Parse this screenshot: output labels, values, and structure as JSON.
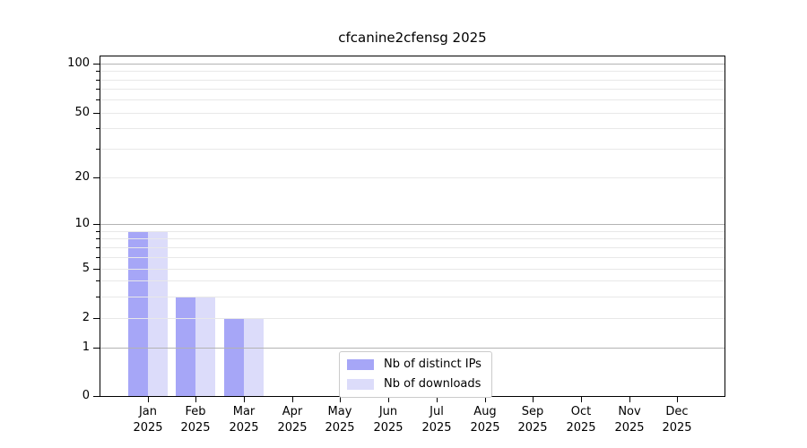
{
  "title": "cfcanine2cfensg 2025",
  "chart_data": {
    "type": "bar",
    "title": "cfcanine2cfensg 2025",
    "categories": [
      "Jan 2025",
      "Feb 2025",
      "Mar 2025",
      "Apr 2025",
      "May 2025",
      "Jun 2025",
      "Jul 2025",
      "Aug 2025",
      "Sep 2025",
      "Oct 2025",
      "Nov 2025",
      "Dec 2025"
    ],
    "series": [
      {
        "name": "Nb of distinct IPs",
        "color": "#a6a6f7",
        "values": [
          9,
          3,
          2,
          0,
          0,
          0,
          0,
          0,
          0,
          0,
          0,
          0
        ]
      },
      {
        "name": "Nb of downloads",
        "color": "#dcdcfa",
        "values": [
          9,
          3,
          2,
          0,
          0,
          0,
          0,
          0,
          0,
          0,
          0,
          0
        ]
      }
    ],
    "xlabel": "",
    "ylabel": "",
    "yscale": "symlog (linear 0-1, logarithmic above 1)",
    "ylim": [
      0,
      111
    ],
    "y_labeled_ticks": [
      0,
      1,
      2,
      5,
      10,
      20,
      50,
      100
    ],
    "y_scale_anchors": [
      [
        0,
        0.0
      ],
      [
        1,
        0.1417
      ],
      [
        2,
        0.2283
      ],
      [
        5,
        0.3753
      ],
      [
        10,
        0.5066
      ],
      [
        20,
        0.643
      ],
      [
        50,
        0.8346
      ],
      [
        100,
        0.979
      ]
    ],
    "grid": {
      "major_values": [
        1,
        10,
        100
      ],
      "minor_values": [
        2,
        3,
        4,
        5,
        6,
        7,
        8,
        9,
        20,
        30,
        40,
        50,
        60,
        70,
        80,
        90
      ],
      "major_color": "#b3b3b3",
      "minor_color": "#e8e8e8"
    },
    "legend_position": "inside axes, lower center"
  },
  "legend": {
    "items": [
      {
        "label": "Nb of distinct IPs",
        "color": "#a6a6f7"
      },
      {
        "label": "Nb of downloads",
        "color": "#dcdcfa"
      }
    ]
  },
  "colors": {
    "background": "#ffffff",
    "spine": "#000000",
    "text": "#000000",
    "legend_border": "#cbcbcb"
  }
}
